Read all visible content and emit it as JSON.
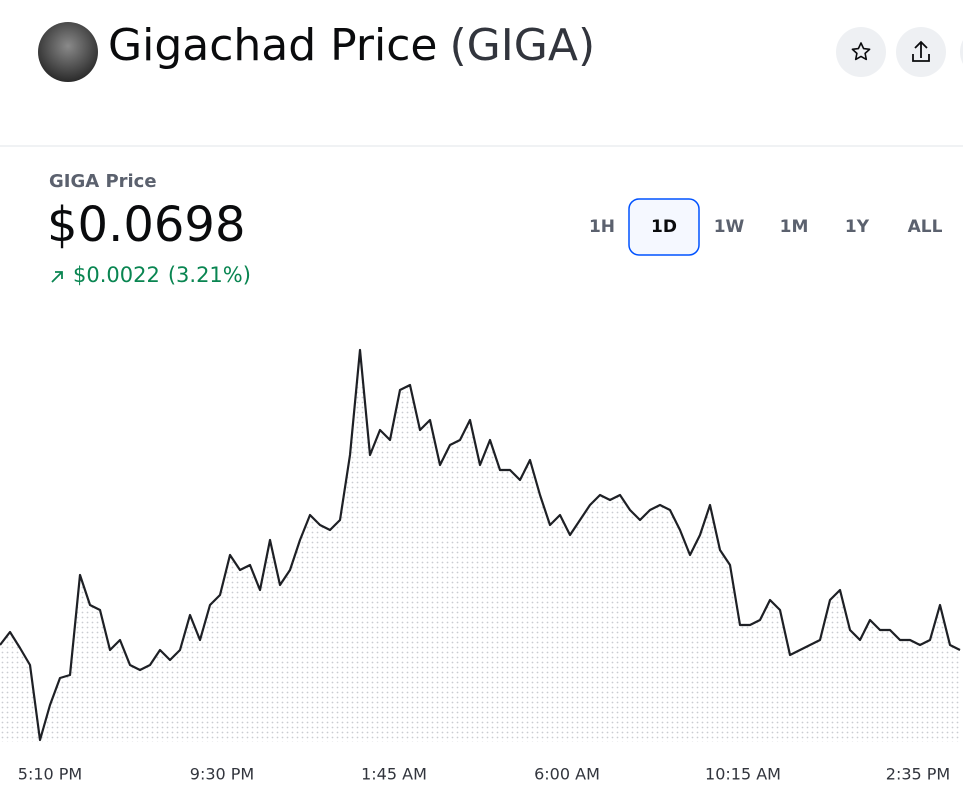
{
  "header": {
    "title": "Gigachad Price",
    "ticker": "(GIGA)"
  },
  "price_panel": {
    "label": "GIGA Price",
    "price": "$0.0698",
    "change": "$0.0022",
    "change_percent": "(3.21%)"
  },
  "range_buttons": {
    "options": [
      "1H",
      "1D",
      "1W",
      "1M",
      "1Y",
      "ALL"
    ],
    "selected": 1
  },
  "chart_data": {
    "type": "line",
    "color": "#1e2025",
    "series": [
      {
        "values": [
          0.06986,
          0.07012,
          0.0698,
          0.06946,
          0.06796,
          0.06866,
          0.0692,
          0.06926,
          0.07126,
          0.07066,
          0.07056,
          0.06976,
          0.06996,
          0.06946,
          0.06936,
          0.06946,
          0.06976,
          0.06956,
          0.06976,
          0.07046,
          0.06996,
          0.07066,
          0.07086,
          0.07166,
          0.07136,
          0.07146,
          0.07096,
          0.07196,
          0.07106,
          0.07136,
          0.07196,
          0.07246,
          0.07226,
          0.07216,
          0.07236,
          0.07366,
          0.07576,
          0.07366,
          0.07416,
          0.07396,
          0.07496,
          0.07506,
          0.07416,
          0.07436,
          0.07346,
          0.07386,
          0.07396,
          0.07436,
          0.07346,
          0.07396,
          0.07336,
          0.07336,
          0.07316,
          0.07356,
          0.07286,
          0.07226,
          0.07246,
          0.07206,
          0.07236,
          0.07266,
          0.07286,
          0.07276,
          0.07286,
          0.07256,
          0.07236,
          0.07256,
          0.07266,
          0.07256,
          0.07216,
          0.07166,
          0.07206,
          0.07266,
          0.07176,
          0.07146,
          0.07026,
          0.07026,
          0.07036,
          0.07076,
          0.07056,
          0.06966,
          0.06976,
          0.06986,
          0.06996,
          0.07076,
          0.07096,
          0.07016,
          0.06996,
          0.07036,
          0.07016,
          0.07016,
          0.06996,
          0.06996,
          0.06986,
          0.06996,
          0.07066,
          0.06986,
          0.06976
        ]
      }
    ],
    "xlim": [
      0,
      96
    ],
    "ylim": [
      0.06792,
      0.07596
    ],
    "xticks": [
      {
        "value": 5,
        "label": "5:10 PM"
      },
      {
        "value": 22.2,
        "label": "9:30 PM"
      },
      {
        "value": 39.4,
        "label": "1:45 AM"
      },
      {
        "value": 56.7,
        "label": "6:00 AM"
      },
      {
        "value": 74.3,
        "label": "10:15 AM"
      },
      {
        "value": 91.8,
        "label": "2:35 PM"
      }
    ]
  }
}
